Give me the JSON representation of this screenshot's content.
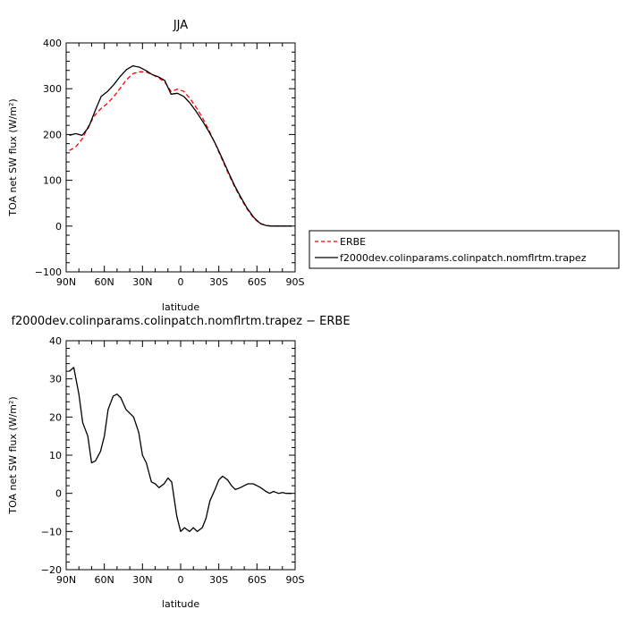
{
  "chart_data": [
    {
      "type": "line",
      "title": "JJA",
      "xlabel": "latitude",
      "ylabel": "TOA net SW flux (W/m²)",
      "x_ticks": [
        90,
        60,
        30,
        0,
        -30,
        -60,
        -90
      ],
      "x_tick_labels": [
        "90N",
        "60N",
        "30N",
        "0",
        "30S",
        "60S",
        "90S"
      ],
      "xlim": [
        90,
        -90
      ],
      "ylim": [
        -100,
        400
      ],
      "y_ticks": [
        -100,
        0,
        100,
        200,
        300,
        400
      ],
      "grid": false,
      "legend_position": "right",
      "series": [
        {
          "name": "ERBE",
          "color": "#ff0000",
          "dash": "dashed",
          "x": [
            87.5,
            82.5,
            77.5,
            72.5,
            67.5,
            62.5,
            57.5,
            52.5,
            47.5,
            42.5,
            37.5,
            32.5,
            27.5,
            22.5,
            17.5,
            12.5,
            7.5,
            2.5,
            -2.5,
            -7.5,
            -12.5,
            -17.5,
            -22.5,
            -27.5,
            -32.5,
            -37.5,
            -42.5,
            -47.5,
            -52.5,
            -57.5,
            -62.5,
            -67.5,
            -72.5,
            -77.5,
            -82.5,
            -87.5
          ],
          "values": [
            165,
            173,
            190,
            218,
            242,
            257,
            268,
            283,
            301,
            320,
            333,
            337,
            337,
            331,
            324,
            315,
            294,
            299,
            294,
            278,
            258,
            235,
            208,
            178,
            146,
            115,
            86,
            59,
            36,
            17,
            5,
            1,
            0,
            0,
            0,
            0
          ]
        },
        {
          "name": "f2000dev.colinparams.colinpatch.nomflrtm.trapez",
          "color": "#000000",
          "dash": "solid",
          "x": [
            87.5,
            82.5,
            77.5,
            72.5,
            67.5,
            62.5,
            57.5,
            52.5,
            47.5,
            42.5,
            37.5,
            32.5,
            27.5,
            22.5,
            17.5,
            12.5,
            7.5,
            2.5,
            -2.5,
            -7.5,
            -12.5,
            -17.5,
            -22.5,
            -27.5,
            -32.5,
            -37.5,
            -42.5,
            -47.5,
            -52.5,
            -57.5,
            -62.5,
            -67.5,
            -72.5,
            -77.5,
            -82.5,
            -87.5
          ],
          "values": [
            198,
            202,
            198,
            215,
            250,
            283,
            294,
            309,
            327,
            342,
            350,
            347,
            340,
            331,
            326,
            318,
            288,
            290,
            283,
            268,
            249,
            228,
            205,
            179,
            149,
            118,
            88,
            62,
            38,
            19,
            6,
            1,
            0,
            0,
            0,
            0
          ]
        }
      ]
    },
    {
      "type": "line",
      "title": "f2000dev.colinparams.colinpatch.nomflrtm.trapez − ERBE",
      "xlabel": "latitude",
      "ylabel": "TOA net SW flux (W/m²)",
      "x_ticks": [
        90,
        60,
        30,
        0,
        -30,
        -60,
        -90
      ],
      "x_tick_labels": [
        "90N",
        "60N",
        "30N",
        "0",
        "30S",
        "60S",
        "90S"
      ],
      "xlim": [
        90,
        -90
      ],
      "ylim": [
        -20,
        40
      ],
      "y_ticks": [
        -20,
        -10,
        0,
        10,
        20,
        30,
        40
      ],
      "grid": false,
      "series": [
        {
          "color": "#000000",
          "dash": "solid",
          "x": [
            87.5,
            84,
            80,
            77,
            73,
            70,
            67,
            63,
            60,
            57,
            53,
            50,
            47,
            43,
            40,
            37,
            33,
            30,
            27,
            23,
            20,
            17,
            13,
            10,
            7,
            3,
            0,
            -3,
            -7,
            -10,
            -13,
            -17,
            -20,
            -23,
            -27,
            -30,
            -33,
            -37,
            -40,
            -43,
            -47,
            -50,
            -53,
            -57,
            -60,
            -63,
            -67,
            -70,
            -73,
            -77,
            -80,
            -83,
            -87.5
          ],
          "values": [
            32,
            33,
            26,
            18.5,
            15,
            8,
            8.5,
            11,
            15,
            22,
            25.5,
            26,
            25,
            22,
            21,
            20,
            16,
            10,
            8,
            3,
            2.5,
            1.5,
            2.5,
            4,
            3,
            -6,
            -10,
            -9,
            -10,
            -9,
            -10,
            -9,
            -6.5,
            -2,
            1,
            3.5,
            4.5,
            3.5,
            2,
            1,
            1.5,
            2,
            2.5,
            2.5,
            2,
            1.5,
            0.5,
            0,
            0.5,
            0,
            0.2,
            0,
            0
          ]
        }
      ]
    }
  ]
}
